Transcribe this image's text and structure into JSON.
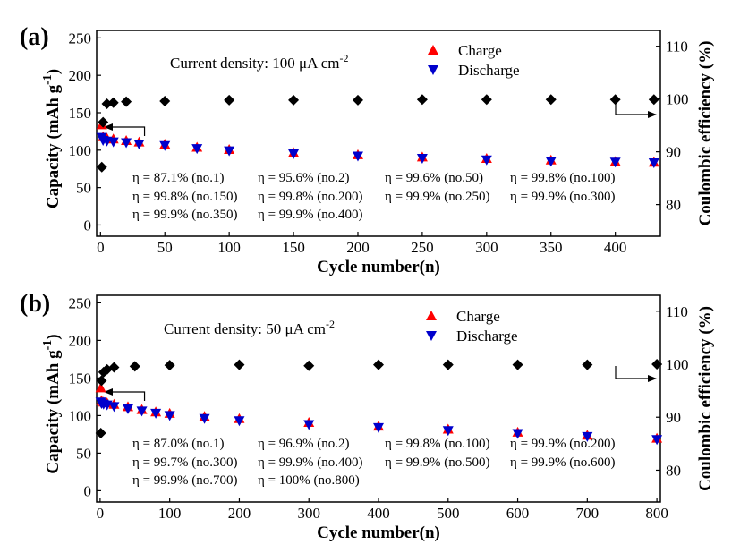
{
  "chart_data": [
    {
      "type": "scatter",
      "panel": "(a)",
      "xlabel": "Cycle number(n)",
      "ylabel_left": "Capacity (mAh g",
      "ylabel_left_sup": "-1",
      "ylabel_left_close": ")",
      "ylabel_right": "Coulombic efficiency (%)",
      "xlim": [
        -3,
        435
      ],
      "ylim_left": [
        -15,
        260
      ],
      "ylim_right": [
        74,
        113
      ],
      "xticks": [
        0,
        50,
        100,
        150,
        200,
        250,
        300,
        350,
        400
      ],
      "yticks_left": [
        0,
        50,
        100,
        150,
        200,
        250
      ],
      "yticks_right": [
        80,
        90,
        100,
        110
      ],
      "annotation": "Current density: 100 μA cm",
      "annotation_sup": "-2",
      "legend": [
        {
          "label": "Charge",
          "marker": "triangle-up",
          "color": "#ff0000"
        },
        {
          "label": "Discharge",
          "marker": "triangle-down",
          "color": "#0000cc"
        }
      ],
      "series": [
        {
          "name": "Charge",
          "axis": "left",
          "x": [
            1,
            2,
            5,
            10,
            20,
            30,
            50,
            75,
            100,
            150,
            200,
            250,
            300,
            350,
            400,
            430
          ],
          "values": [
            134,
            118,
            116,
            115,
            113,
            111,
            108,
            104,
            101,
            97,
            94,
            91,
            89,
            87,
            85,
            84
          ]
        },
        {
          "name": "Discharge",
          "axis": "left",
          "x": [
            1,
            2,
            5,
            10,
            20,
            30,
            50,
            75,
            100,
            150,
            200,
            250,
            300,
            350,
            400,
            430
          ],
          "values": [
            117,
            113,
            112,
            111,
            110,
            108,
            106,
            102,
            99,
            95,
            92,
            89,
            87,
            85,
            84,
            83
          ]
        },
        {
          "name": "Coulombic efficiency",
          "axis": "right",
          "x": [
            1,
            2,
            5,
            10,
            20,
            50,
            100,
            150,
            200,
            250,
            300,
            350,
            400,
            430
          ],
          "values": [
            87.1,
            95.6,
            99.1,
            99.3,
            99.5,
            99.6,
            99.8,
            99.8,
            99.8,
            99.9,
            99.9,
            99.9,
            99.9,
            99.9
          ]
        }
      ],
      "efficiency_notes": [
        "η = 87.1% (no.1)",
        "η = 95.6% (no.2)",
        "η = 99.6% (no.50)",
        "η = 99.8% (no.100)",
        "η = 99.8% (no.150)",
        "η = 99.8% (no.200)",
        "η = 99.9% (no.250)",
        "η = 99.9% (no.300)",
        "η = 99.9% (no.350)",
        "η = 99.9% (no.400)"
      ]
    },
    {
      "type": "scatter",
      "panel": "(b)",
      "xlabel": "Cycle number(n)",
      "ylabel_left": "Capacity (mAh g",
      "ylabel_left_sup": "-1",
      "ylabel_left_close": ")",
      "ylabel_right": "Coulombic efficiency (%)",
      "xlim": [
        -5,
        805
      ],
      "ylim_left": [
        -15,
        260
      ],
      "ylim_right": [
        74,
        113
      ],
      "xticks": [
        0,
        100,
        200,
        300,
        400,
        500,
        600,
        700,
        800
      ],
      "yticks_left": [
        0,
        50,
        100,
        150,
        200,
        250
      ],
      "yticks_right": [
        80,
        90,
        100,
        110
      ],
      "annotation": "Current density: 50 μA cm",
      "annotation_sup": "-2",
      "legend": [
        {
          "label": "Charge",
          "marker": "triangle-up",
          "color": "#ff0000"
        },
        {
          "label": "Discharge",
          "marker": "triangle-down",
          "color": "#0000cc"
        }
      ],
      "series": [
        {
          "name": "Charge",
          "axis": "left",
          "x": [
            1,
            2,
            5,
            10,
            20,
            40,
            60,
            80,
            100,
            150,
            200,
            300,
            400,
            500,
            600,
            700,
            800
          ],
          "values": [
            137,
            120,
            118,
            117,
            115,
            112,
            108,
            105,
            103,
            99,
            96,
            91,
            86,
            82,
            78,
            74,
            70
          ]
        },
        {
          "name": "Discharge",
          "axis": "left",
          "x": [
            1,
            2,
            5,
            10,
            20,
            40,
            60,
            80,
            100,
            150,
            200,
            300,
            400,
            500,
            600,
            700,
            800
          ],
          "values": [
            118,
            116,
            115,
            114,
            112,
            109,
            106,
            103,
            100,
            96,
            93,
            88,
            84,
            80,
            76,
            72,
            68
          ]
        },
        {
          "name": "Coulombic efficiency",
          "axis": "right",
          "x": [
            1,
            2,
            5,
            10,
            20,
            50,
            100,
            200,
            300,
            400,
            500,
            600,
            700,
            800
          ],
          "values": [
            87.0,
            96.9,
            98.5,
            99.0,
            99.4,
            99.6,
            99.8,
            99.9,
            99.7,
            99.9,
            99.9,
            99.9,
            99.9,
            100
          ]
        }
      ],
      "efficiency_notes": [
        "η = 87.0% (no.1)",
        "η = 96.9% (no.2)",
        "η = 99.8% (no.100)",
        "η = 99.9% (no.200)",
        "η = 99.7% (no.300)",
        "η = 99.9% (no.400)",
        "η = 99.9% (no.500)",
        "η = 99.9% (no.600)",
        "η = 99.9% (no.700)",
        "η = 100% (no.800)"
      ]
    }
  ]
}
